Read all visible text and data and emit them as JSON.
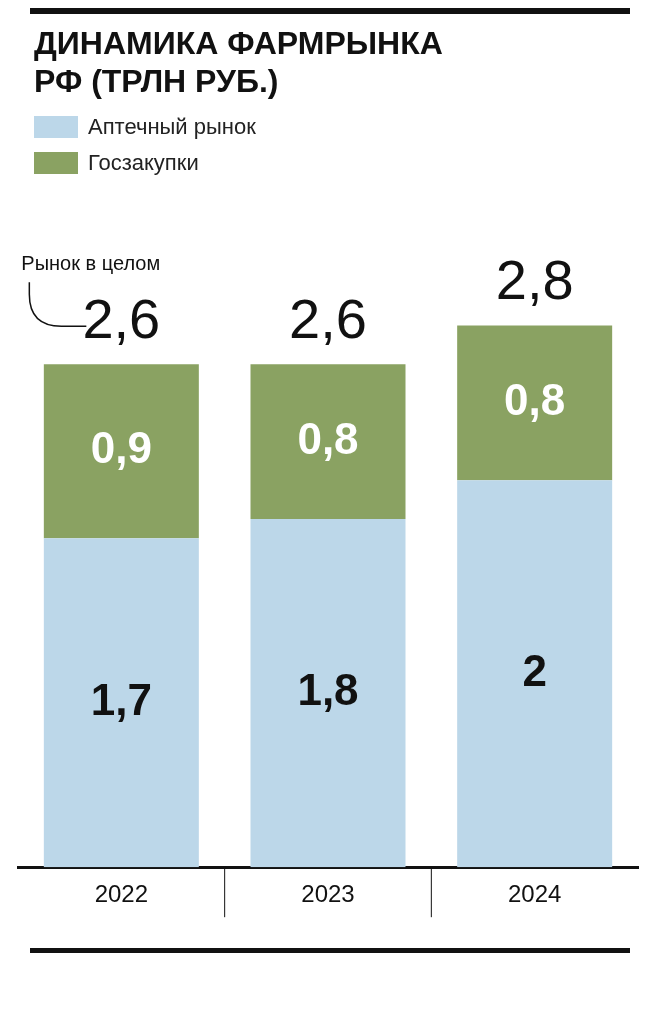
{
  "chart_data": {
    "type": "bar",
    "title": "ДИНАМИКА ФАРМРЫНКА РФ (ТРЛН РУБ.)",
    "categories": [
      "2022",
      "2023",
      "2024"
    ],
    "stacked": true,
    "series": [
      {
        "name": "Аптечный рынок",
        "color": "#bcd7e9",
        "values": [
          1.7,
          1.8,
          2
        ],
        "value_labels": [
          "1,7",
          "1,8",
          "2"
        ]
      },
      {
        "name": "Госзакупки",
        "color": "#8aa262",
        "values": [
          0.9,
          0.8,
          0.8
        ],
        "value_labels": [
          "0,9",
          "0,8",
          "0,8"
        ]
      }
    ],
    "totals": [
      "2,6",
      "2,6",
      "2,8"
    ],
    "annotations": [
      "Рынок в целом"
    ],
    "legend": "top left",
    "grid": false
  }
}
